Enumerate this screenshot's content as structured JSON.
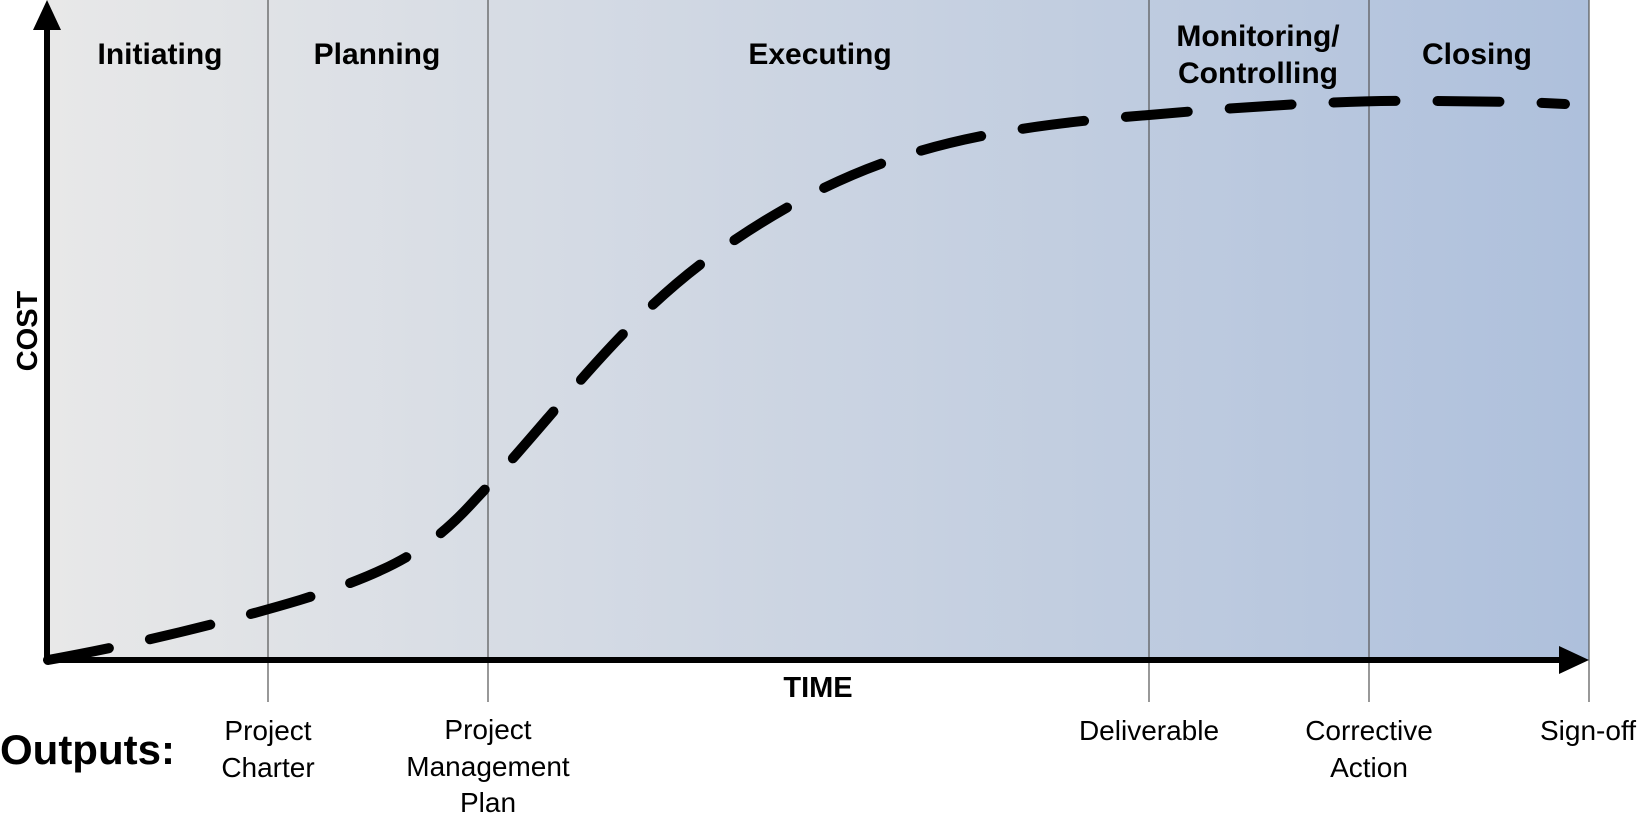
{
  "phases": [
    {
      "key": "initiating",
      "lines": [
        "Initiating"
      ]
    },
    {
      "key": "planning",
      "lines": [
        "Planning"
      ]
    },
    {
      "key": "executing",
      "lines": [
        "Executing"
      ]
    },
    {
      "key": "monitoring",
      "lines": [
        "Monitoring/",
        "Controlling"
      ]
    },
    {
      "key": "closing",
      "lines": [
        "Closing"
      ]
    }
  ],
  "axes": {
    "y_label": "COST",
    "x_label": "TIME"
  },
  "outputs": {
    "title": "Outputs:",
    "items": [
      {
        "key": "charter",
        "lines": [
          "Project",
          "Charter"
        ]
      },
      {
        "key": "pm-plan",
        "lines": [
          "Project",
          "Management",
          "Plan"
        ]
      },
      {
        "key": "deliverable",
        "lines": [
          "Deliverable"
        ]
      },
      {
        "key": "corrective",
        "lines": [
          "Corrective",
          "Action"
        ]
      },
      {
        "key": "signoff",
        "lines": [
          "Sign-off"
        ]
      }
    ]
  },
  "colors": {
    "gradient_start": "#e8e8e8",
    "gradient_end": "#aec0dc",
    "axis": "#000000",
    "divider": "#555555",
    "curve": "#000000"
  }
}
